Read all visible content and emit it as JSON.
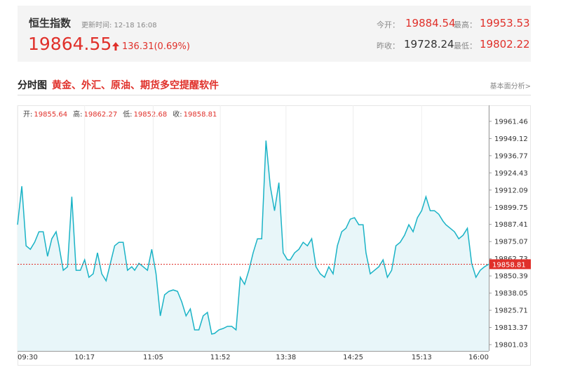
{
  "header": {
    "title": "恒生指数",
    "update": "更新时间: 12-18 16:08",
    "price": "19864.55",
    "change": "136.31(0.69%)",
    "stats": [
      {
        "label": "今开：",
        "value": "19884.54"
      },
      {
        "label": "最高：",
        "value": "19953.53"
      },
      {
        "label": "昨收：",
        "value": "19728.24"
      },
      {
        "label": "最低：",
        "value": "19802.22"
      }
    ]
  },
  "section": {
    "title": "分时图",
    "promo": "黄金、外汇、原油、期货多空提醒软件",
    "link": "基本面分析>"
  },
  "chart_data": {
    "type": "line",
    "color": "#1ab3c6",
    "fill": "#e8f6f9",
    "reference_color": "#e0302a",
    "ohlc": [
      {
        "label": "开:",
        "value": 19855.64
      },
      {
        "label": "高:",
        "value": 19862.27
      },
      {
        "label": "低:",
        "value": 19852.68
      },
      {
        "label": "收:",
        "value": 19858.81
      }
    ],
    "x": [
      0,
      3,
      6,
      9,
      12,
      15,
      18,
      21,
      24,
      27,
      29,
      32,
      35,
      38,
      41,
      44,
      47,
      50,
      53,
      56,
      59,
      62,
      65,
      68,
      71,
      74,
      77,
      80,
      82,
      85,
      88,
      91,
      94,
      97,
      100,
      103,
      106,
      109,
      112,
      115,
      118,
      121,
      124,
      127,
      130,
      133,
      136,
      138,
      141,
      144,
      147,
      150,
      153,
      156,
      159,
      162,
      165,
      168,
      171,
      174,
      177,
      180,
      183,
      186,
      189,
      191,
      194,
      197,
      200,
      203,
      206,
      209,
      212,
      215,
      218,
      221,
      224,
      227,
      230,
      233,
      236,
      239,
      242,
      244,
      247,
      250,
      253,
      256,
      259,
      262,
      265,
      268,
      271,
      274,
      277,
      280,
      283,
      286,
      289,
      292,
      295,
      298,
      300,
      303,
      306,
      309,
      312,
      315,
      318,
      321,
      324,
      327,
      330
    ],
    "values": [
      19887.16,
      19914.87,
      19872.05,
      19869.53,
      19874.57,
      19882.13,
      19882.13,
      19864.5,
      19877.09,
      19882.13,
      19872.05,
      19854.42,
      19856.94,
      19907.31,
      19854.42,
      19854.42,
      19861.98,
      19849.39,
      19851.9,
      19867.01,
      19851.9,
      19846.87,
      19859.46,
      19872.05,
      19874.57,
      19874.57,
      19854.42,
      19856.94,
      19854.42,
      19859.46,
      19856.94,
      19854.42,
      19869.53,
      19851.9,
      19821.68,
      19836.79,
      19839.31,
      19840.32,
      19839.31,
      19831.76,
      19821.68,
      19826.72,
      19811.61,
      19811.61,
      19821.68,
      19824.2,
      19808.59,
      19809.09,
      19811.61,
      19812.62,
      19814.13,
      19814.13,
      19811.61,
      19849.39,
      19844.35,
      19854.42,
      19867.01,
      19877.09,
      19877.09,
      19947.61,
      19914.87,
      19897.24,
      19917.38,
      19867.01,
      19861.98,
      19861.98,
      19867.01,
      19869.53,
      19874.57,
      19872.05,
      19877.09,
      19856.94,
      19851.9,
      19849.39,
      19856.94,
      19851.9,
      19872.05,
      19882.13,
      19884.64,
      19891.19,
      19892.2,
      19887.16,
      19887.16,
      19867.01,
      19851.9,
      19854.42,
      19856.94,
      19861.98,
      19849.39,
      19854.42,
      19872.05,
      19874.57,
      19879.61,
      19887.16,
      19882.13,
      19892.2,
      19897.24,
      19907.31,
      19897.24,
      19897.24,
      19894.72,
      19889.68,
      19887.16,
      19884.64,
      19882.13,
      19877.09,
      19879.61,
      19884.64,
      19859.46,
      19849.39,
      19854.42,
      19856.94,
      19858.81
    ],
    "xlim": [
      0,
      330
    ],
    "xticks": [
      {
        "value": 0,
        "label": "09:30"
      },
      {
        "value": 47,
        "label": "10:17"
      },
      {
        "value": 95,
        "label": "11:05"
      },
      {
        "value": 142,
        "label": "11:52"
      },
      {
        "value": 188,
        "label": "13:38"
      },
      {
        "value": 235,
        "label": "14:25"
      },
      {
        "value": 283,
        "label": "15:13"
      },
      {
        "value": 330,
        "label": "16:00"
      }
    ],
    "ylim": [
      19796.5,
      19973.0
    ],
    "yticks": [
      19801.03,
      19813.37,
      19825.71,
      19838.05,
      19850.39,
      19862.73,
      19875.07,
      19887.41,
      19899.75,
      19912.09,
      19924.43,
      19936.77,
      19949.12,
      19961.46
    ],
    "grid": true
  }
}
